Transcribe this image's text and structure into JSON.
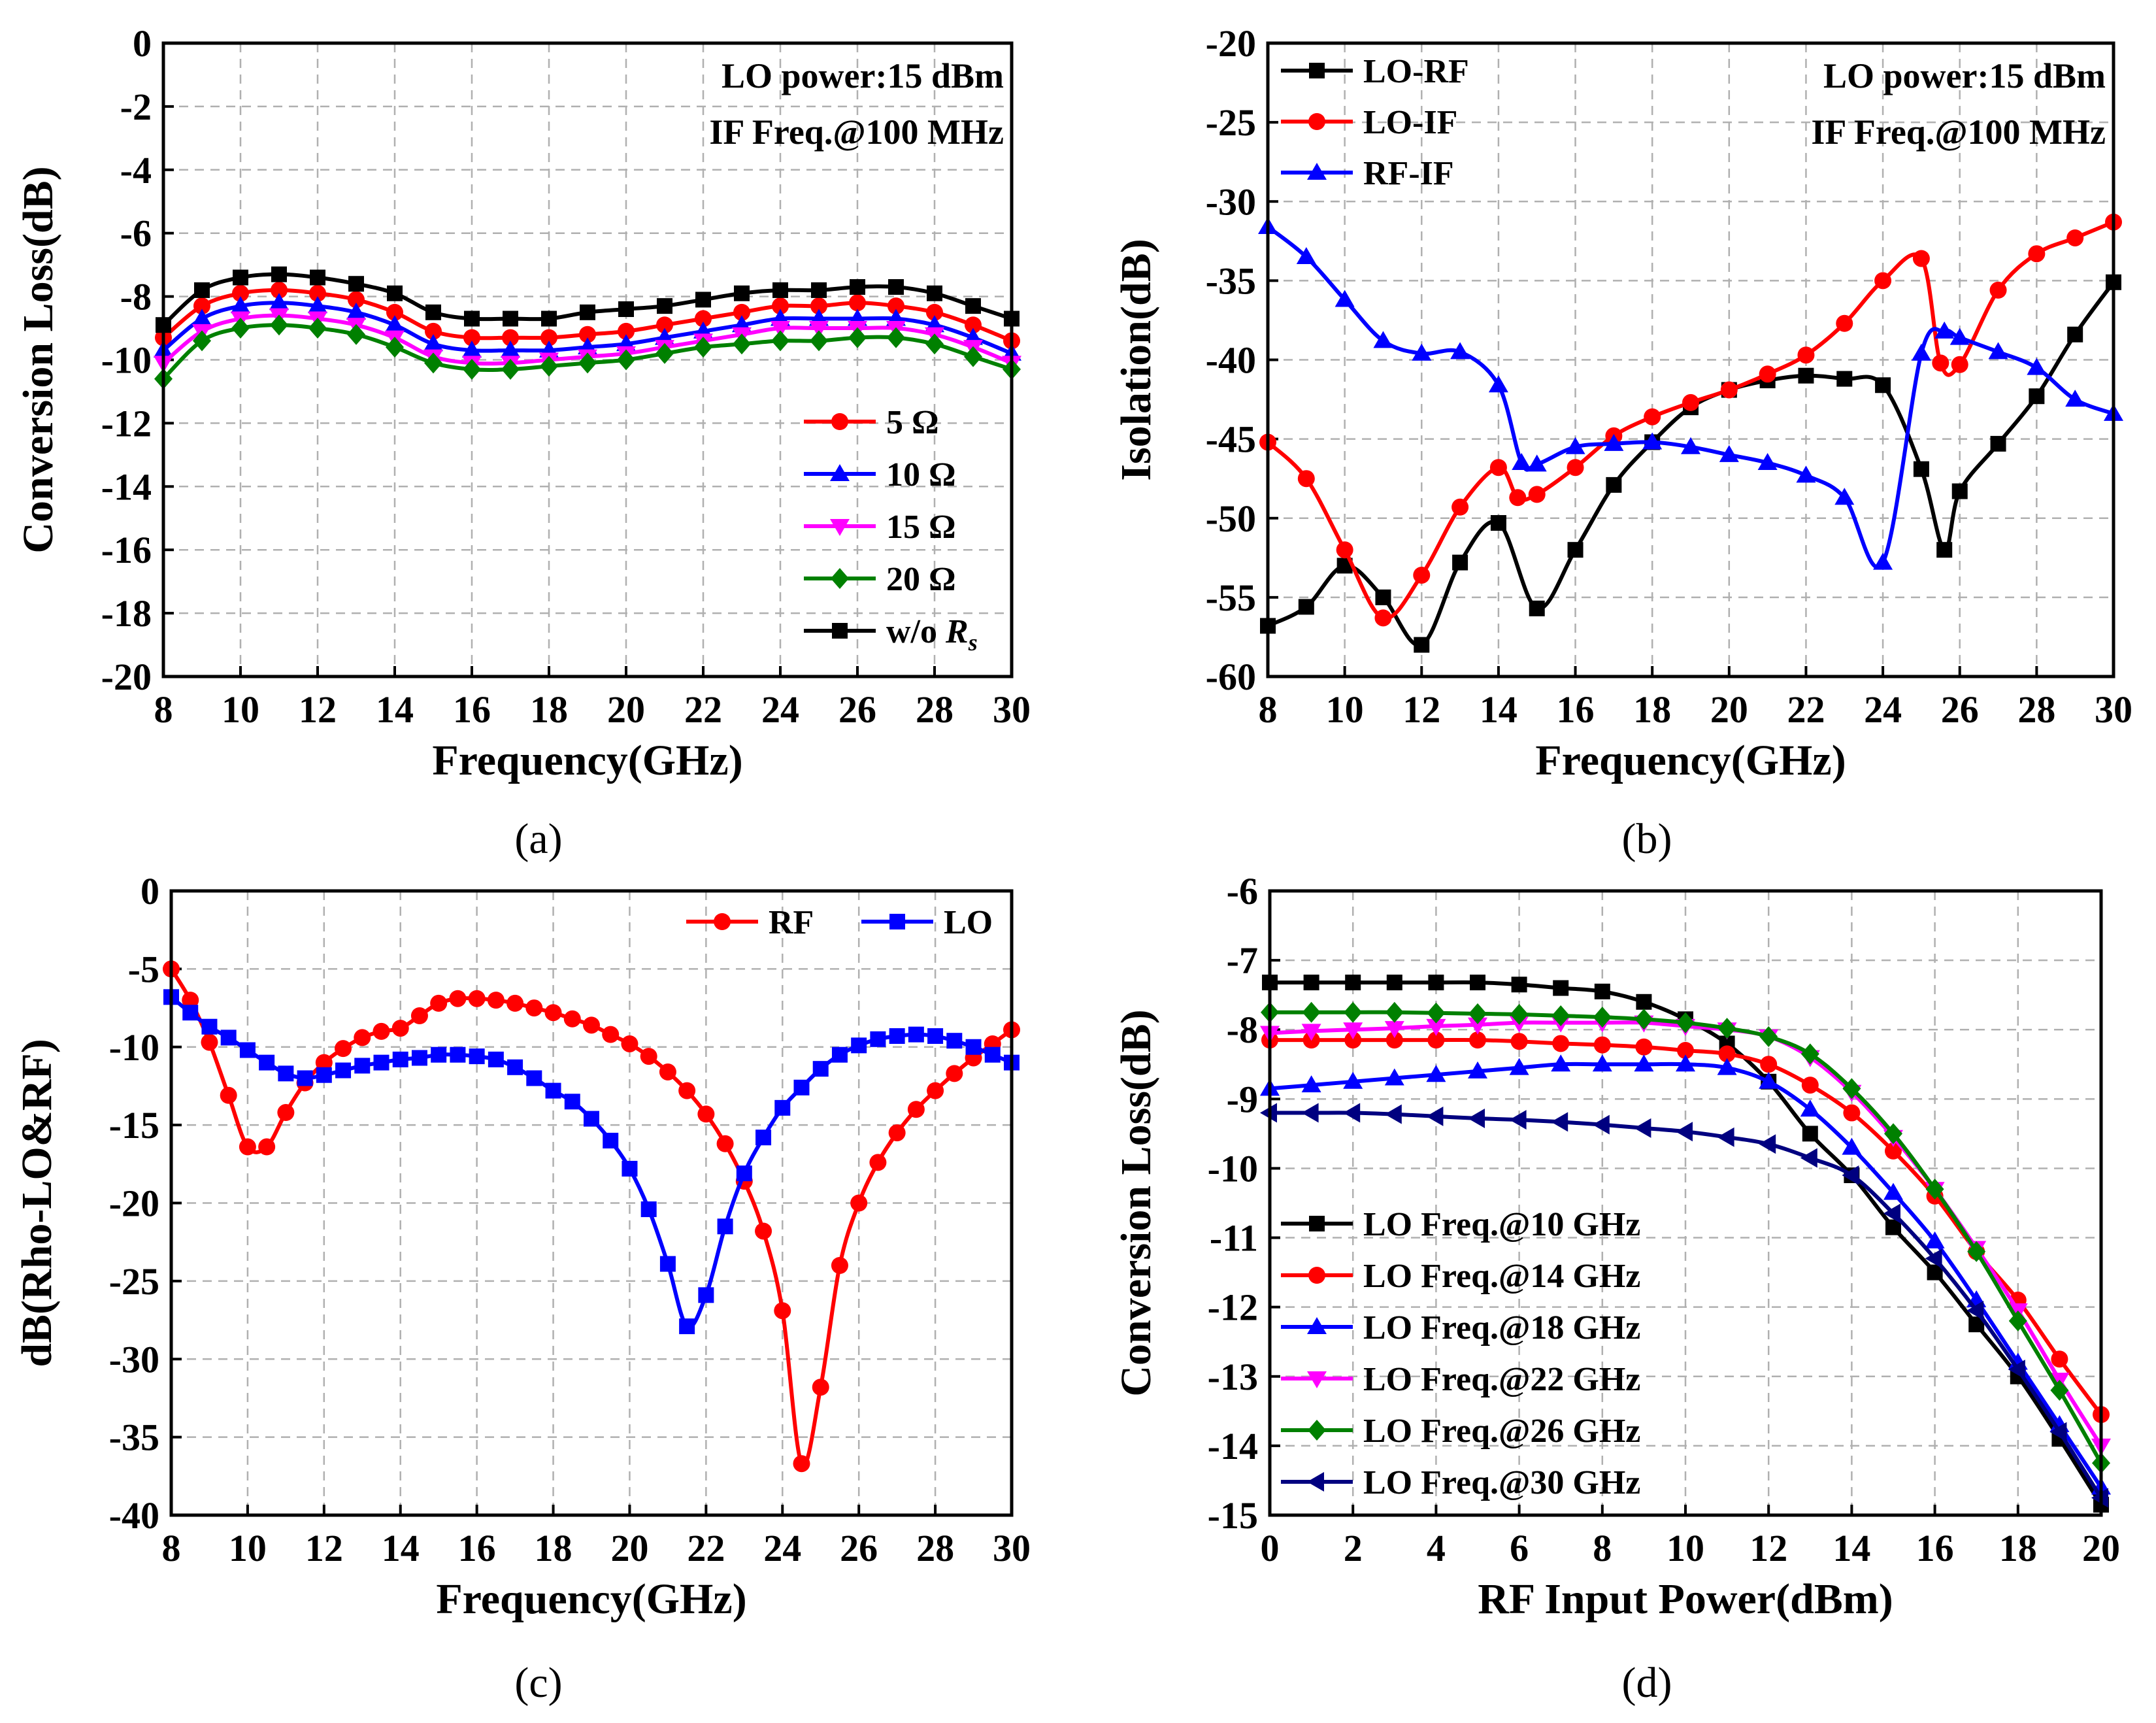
{
  "chart_data": [
    {
      "id": "a",
      "type": "line",
      "panel_label": "(a)",
      "xlabel": "Frequency(GHz)",
      "ylabel": "Conversion Loss(dB)",
      "xlim": [
        8,
        30
      ],
      "ylim": [
        -20,
        0
      ],
      "xticks": [
        8,
        10,
        12,
        14,
        16,
        18,
        20,
        22,
        24,
        26,
        28,
        30
      ],
      "yticks": [
        0,
        -2,
        -4,
        -6,
        -8,
        -10,
        -12,
        -14,
        -16,
        -18,
        -20
      ],
      "grid": true,
      "annotations": [
        "LO power:15 dBm",
        "IF Freq.@100 MHz"
      ],
      "legend_position": "bottom-right",
      "x": [
        8,
        9,
        10,
        11,
        12,
        13,
        14,
        15,
        16,
        17,
        18,
        19,
        20,
        21,
        22,
        23,
        24,
        25,
        26,
        27,
        28,
        29,
        30
      ],
      "series": [
        {
          "name": "5 Ω",
          "color": "#ff0000",
          "marker": "circle",
          "values": [
            -9.3,
            -8.3,
            -7.9,
            -7.8,
            -7.9,
            -8.1,
            -8.5,
            -9.1,
            -9.3,
            -9.3,
            -9.3,
            -9.2,
            -9.1,
            -8.9,
            -8.7,
            -8.5,
            -8.3,
            -8.3,
            -8.2,
            -8.3,
            -8.5,
            -8.9,
            -9.4
          ]
        },
        {
          "name": "10 Ω",
          "color": "#0000ff",
          "marker": "triangle-up",
          "values": [
            -9.7,
            -8.7,
            -8.3,
            -8.2,
            -8.3,
            -8.5,
            -8.9,
            -9.5,
            -9.7,
            -9.7,
            -9.7,
            -9.6,
            -9.5,
            -9.3,
            -9.1,
            -8.9,
            -8.7,
            -8.7,
            -8.7,
            -8.7,
            -8.9,
            -9.3,
            -9.8
          ]
        },
        {
          "name": "15 Ω",
          "color": "#ff00ff",
          "marker": "triangle-down",
          "values": [
            -10.1,
            -9.1,
            -8.7,
            -8.6,
            -8.7,
            -8.9,
            -9.3,
            -9.9,
            -10.1,
            -10.1,
            -10.0,
            -9.9,
            -9.8,
            -9.6,
            -9.4,
            -9.2,
            -9.0,
            -9.0,
            -9.0,
            -9.0,
            -9.2,
            -9.6,
            -10.1
          ]
        },
        {
          "name": "20 Ω",
          "color": "#008000",
          "marker": "diamond",
          "values": [
            -10.6,
            -9.4,
            -9.0,
            -8.9,
            -9.0,
            -9.2,
            -9.6,
            -10.1,
            -10.3,
            -10.3,
            -10.2,
            -10.1,
            -10.0,
            -9.8,
            -9.6,
            -9.5,
            -9.4,
            -9.4,
            -9.3,
            -9.3,
            -9.5,
            -9.9,
            -10.3
          ]
        },
        {
          "name": "w/o ",
          "name_italic": "R",
          "name_sub": "s",
          "color": "#000000",
          "marker": "square",
          "values": [
            -8.9,
            -7.8,
            -7.4,
            -7.3,
            -7.4,
            -7.6,
            -7.9,
            -8.5,
            -8.7,
            -8.7,
            -8.7,
            -8.5,
            -8.4,
            -8.3,
            -8.1,
            -7.9,
            -7.8,
            -7.8,
            -7.7,
            -7.7,
            -7.9,
            -8.3,
            -8.7
          ]
        }
      ]
    },
    {
      "id": "b",
      "type": "line",
      "panel_label": "(b)",
      "xlabel": "Frequency(GHz)",
      "ylabel": "Isolation(dB)",
      "xlim": [
        8,
        30
      ],
      "ylim": [
        -60,
        -20
      ],
      "xticks": [
        8,
        10,
        12,
        14,
        16,
        18,
        20,
        22,
        24,
        26,
        28,
        30
      ],
      "yticks": [
        -20,
        -25,
        -30,
        -35,
        -40,
        -45,
        -50,
        -55,
        -60
      ],
      "grid": true,
      "annotations": [
        "LO power:15 dBm",
        "IF Freq.@100 MHz"
      ],
      "legend_position": "top-left",
      "series": [
        {
          "name": "LO-RF",
          "color": "#000000",
          "marker": "square",
          "x": [
            8,
            9,
            10,
            11,
            12,
            13,
            14,
            15,
            16,
            17,
            18,
            19,
            20,
            21,
            22,
            23,
            24,
            25,
            25.6,
            26,
            27,
            28,
            29,
            30
          ],
          "values": [
            -56.8,
            -55.6,
            -53.0,
            -55.0,
            -58.0,
            -52.8,
            -50.3,
            -55.7,
            -52.0,
            -47.9,
            -45.2,
            -43.0,
            -41.9,
            -41.3,
            -41.0,
            -41.2,
            -41.6,
            -46.9,
            -52.0,
            -48.3,
            -45.3,
            -42.3,
            -38.4,
            -35.1
          ]
        },
        {
          "name": "LO-IF",
          "color": "#ff0000",
          "marker": "circle",
          "x": [
            8,
            9,
            10,
            11,
            12,
            13,
            14,
            14.5,
            15,
            16,
            17,
            18,
            19,
            20,
            21,
            22,
            23,
            24,
            25,
            25.5,
            26,
            27,
            28,
            29,
            30
          ],
          "values": [
            -45.2,
            -47.5,
            -52.0,
            -56.3,
            -53.6,
            -49.3,
            -46.8,
            -48.7,
            -48.5,
            -46.8,
            -44.8,
            -43.6,
            -42.7,
            -41.9,
            -40.9,
            -39.7,
            -37.7,
            -35.0,
            -33.6,
            -40.2,
            -40.3,
            -35.6,
            -33.3,
            -32.3,
            -31.3
          ]
        },
        {
          "name": "RF-IF",
          "color": "#0000ff",
          "marker": "triangle-up",
          "x": [
            8,
            9,
            10,
            11,
            12,
            13,
            14,
            14.6,
            15,
            16,
            17,
            18,
            19,
            20,
            21,
            22,
            23,
            24,
            25,
            25.6,
            26,
            27,
            28,
            29,
            30
          ],
          "values": [
            -31.6,
            -33.5,
            -36.2,
            -38.8,
            -39.6,
            -39.5,
            -41.6,
            -46.5,
            -46.6,
            -45.5,
            -45.3,
            -45.2,
            -45.5,
            -46.0,
            -46.5,
            -47.3,
            -48.7,
            -52.8,
            -39.6,
            -38.2,
            -38.6,
            -39.5,
            -40.5,
            -42.5,
            -43.4
          ]
        }
      ]
    },
    {
      "id": "c",
      "type": "line",
      "panel_label": "(c)",
      "xlabel": "Frequency(GHz)",
      "ylabel": "dB(Rho-LO&RF)",
      "xlim": [
        8,
        30
      ],
      "ylim": [
        -40,
        0
      ],
      "xticks": [
        8,
        10,
        12,
        14,
        16,
        18,
        20,
        22,
        24,
        26,
        28,
        30
      ],
      "yticks": [
        0,
        -5,
        -10,
        -15,
        -20,
        -25,
        -30,
        -35,
        -40
      ],
      "grid": true,
      "legend_position": "top-right",
      "x": [
        8,
        8.5,
        9,
        9.5,
        10,
        10.5,
        11,
        11.5,
        12,
        12.5,
        13,
        13.5,
        14,
        14.5,
        15,
        15.5,
        16,
        16.5,
        17,
        17.5,
        18,
        18.5,
        19,
        19.5,
        20,
        20.5,
        21,
        21.5,
        22,
        22.5,
        23,
        23.5,
        24,
        24.5,
        25,
        25.5,
        26,
        26.5,
        27,
        27.5,
        28,
        28.5,
        29,
        29.5,
        30
      ],
      "series": [
        {
          "name": "RF",
          "color": "#ff0000",
          "marker": "circle",
          "values": [
            -5.0,
            -7.0,
            -9.7,
            -13.1,
            -16.4,
            -16.4,
            -14.2,
            -12.3,
            -11.0,
            -10.1,
            -9.4,
            -9.0,
            -8.8,
            -8.0,
            -7.2,
            -6.9,
            -6.9,
            -7.0,
            -7.2,
            -7.5,
            -7.8,
            -8.2,
            -8.6,
            -9.2,
            -9.8,
            -10.6,
            -11.6,
            -12.8,
            -14.3,
            -16.2,
            -18.6,
            -21.8,
            -26.9,
            -36.7,
            -31.8,
            -24.0,
            -20.0,
            -17.4,
            -15.5,
            -14.0,
            -12.8,
            -11.7,
            -10.7,
            -9.8,
            -8.9
          ]
        },
        {
          "name": "LO",
          "color": "#0000ff",
          "marker": "square",
          "values": [
            -6.8,
            -7.8,
            -8.7,
            -9.4,
            -10.2,
            -11.0,
            -11.7,
            -12.0,
            -11.8,
            -11.5,
            -11.2,
            -11.0,
            -10.8,
            -10.7,
            -10.5,
            -10.5,
            -10.6,
            -10.8,
            -11.3,
            -12.0,
            -12.8,
            -13.5,
            -14.6,
            -16.0,
            -17.8,
            -20.4,
            -23.9,
            -27.9,
            -25.9,
            -21.5,
            -18.1,
            -15.8,
            -13.9,
            -12.6,
            -11.4,
            -10.5,
            -9.9,
            -9.5,
            -9.3,
            -9.2,
            -9.3,
            -9.6,
            -10.0,
            -10.5,
            -11.0
          ]
        }
      ]
    },
    {
      "id": "d",
      "type": "line",
      "panel_label": "(d)",
      "xlabel": "RF Input Power(dBm)",
      "ylabel": "Conversion Loss(dB)",
      "xlim": [
        0,
        20
      ],
      "ylim": [
        -15,
        -6
      ],
      "xticks": [
        0,
        2,
        4,
        6,
        8,
        10,
        12,
        14,
        16,
        18,
        20
      ],
      "yticks": [
        -6,
        -7,
        -8,
        -9,
        -10,
        -11,
        -12,
        -13,
        -14,
        -15
      ],
      "grid": true,
      "legend_position": "bottom-left",
      "x": [
        0,
        1,
        2,
        3,
        4,
        5,
        6,
        7,
        8,
        9,
        10,
        11,
        12,
        13,
        14,
        15,
        16,
        17,
        18,
        19,
        20
      ],
      "series": [
        {
          "name": "LO Freq.@10 GHz",
          "color": "#000000",
          "marker": "square",
          "values": [
            -7.32,
            -7.32,
            -7.32,
            -7.32,
            -7.32,
            -7.32,
            -7.35,
            -7.4,
            -7.45,
            -7.6,
            -7.85,
            -8.2,
            -8.75,
            -9.5,
            -10.1,
            -10.85,
            -11.5,
            -12.25,
            -13.0,
            -13.9,
            -14.85
          ]
        },
        {
          "name": "LO Freq.@14 GHz",
          "color": "#ff0000",
          "marker": "circle",
          "values": [
            -8.15,
            -8.15,
            -8.15,
            -8.15,
            -8.15,
            -8.15,
            -8.17,
            -8.2,
            -8.22,
            -8.25,
            -8.3,
            -8.35,
            -8.5,
            -8.8,
            -9.2,
            -9.75,
            -10.4,
            -11.2,
            -11.9,
            -12.75,
            -13.55
          ]
        },
        {
          "name": "LO Freq.@18 GHz",
          "color": "#0000ff",
          "marker": "triangle-up",
          "values": [
            -8.85,
            -8.8,
            -8.75,
            -8.7,
            -8.65,
            -8.6,
            -8.55,
            -8.5,
            -8.5,
            -8.5,
            -8.5,
            -8.55,
            -8.75,
            -9.15,
            -9.7,
            -10.35,
            -11.05,
            -11.9,
            -12.8,
            -13.7,
            -14.6
          ]
        },
        {
          "name": "LO Freq.@22 GHz",
          "color": "#ff00ff",
          "marker": "triangle-down",
          "values": [
            -8.05,
            -8.02,
            -8.0,
            -7.98,
            -7.95,
            -7.93,
            -7.9,
            -7.9,
            -7.9,
            -7.9,
            -7.95,
            -8.0,
            -8.1,
            -8.4,
            -8.9,
            -9.55,
            -10.3,
            -11.15,
            -12.05,
            -13.05,
            -14.0
          ]
        },
        {
          "name": "LO Freq.@26 GHz",
          "color": "#008000",
          "marker": "diamond",
          "values": [
            -7.75,
            -7.75,
            -7.75,
            -7.75,
            -7.76,
            -7.77,
            -7.78,
            -7.8,
            -7.82,
            -7.85,
            -7.9,
            -7.98,
            -8.1,
            -8.35,
            -8.85,
            -9.5,
            -10.3,
            -11.2,
            -12.2,
            -13.2,
            -14.25
          ]
        },
        {
          "name": "LO Freq.@30 GHz",
          "color": "#000080",
          "marker": "triangle-left",
          "values": [
            -9.2,
            -9.2,
            -9.2,
            -9.22,
            -9.25,
            -9.28,
            -9.3,
            -9.33,
            -9.37,
            -9.42,
            -9.47,
            -9.55,
            -9.65,
            -9.85,
            -10.1,
            -10.65,
            -11.3,
            -12.05,
            -12.9,
            -13.8,
            -14.75
          ]
        }
      ]
    }
  ]
}
